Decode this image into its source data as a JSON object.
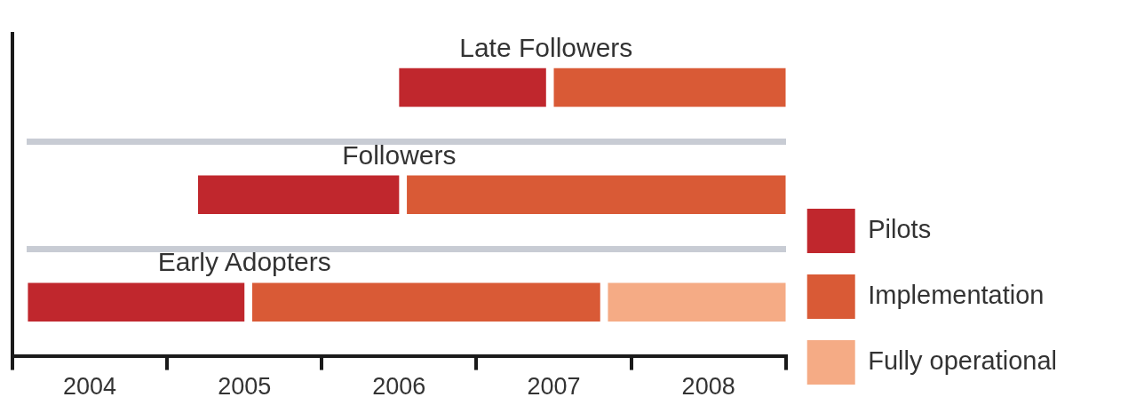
{
  "chart_data": {
    "type": "bar",
    "orientation": "horizontal",
    "categories": [
      "Late Followers",
      "Followers",
      "Early Adopters"
    ],
    "series": [
      {
        "name": "Pilots",
        "color": "#c0272d",
        "values": [
          0.95,
          1.3,
          1.4
        ],
        "base": [
          2006.5,
          2005.2,
          2004.1
        ]
      },
      {
        "name": "Implementation",
        "color": "#d95a36",
        "values": [
          1.5,
          2.45,
          2.25
        ],
        "base": [
          2007.5,
          2006.55,
          2005.55
        ]
      },
      {
        "name": "Fully operational",
        "color": "#f5ab85",
        "values": [
          null,
          null,
          1.15
        ],
        "base": [
          null,
          null,
          2007.85
        ]
      }
    ],
    "xlim": [
      2004,
      2009
    ],
    "xticks": [
      {
        "value": 2004,
        "label": null
      },
      {
        "value": 2004.5,
        "label": "2004"
      },
      {
        "value": 2005,
        "label": null
      },
      {
        "value": 2005.5,
        "label": "2005"
      },
      {
        "value": 2006,
        "label": null
      },
      {
        "value": 2006.5,
        "label": "2006"
      },
      {
        "value": 2007,
        "label": null
      },
      {
        "value": 2007.5,
        "label": "2007"
      },
      {
        "value": 2008,
        "label": null
      },
      {
        "value": 2008.5,
        "label": "2008"
      },
      {
        "value": 2009,
        "label": null
      }
    ],
    "legend": "right"
  }
}
